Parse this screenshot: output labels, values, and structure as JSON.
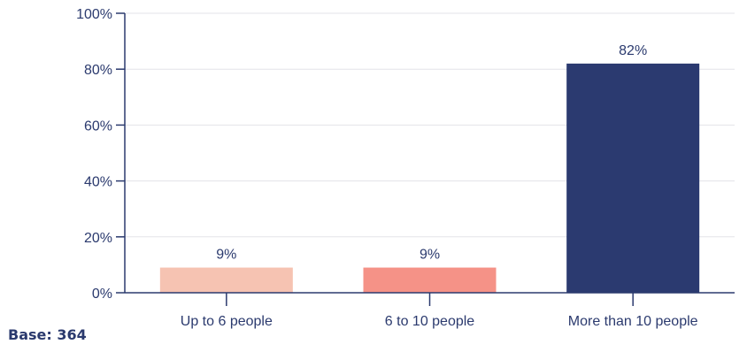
{
  "colors": {
    "axis": "#2b3a6e",
    "grid": "#e3e3e8",
    "text": "#2b3a6e"
  },
  "chart_data": {
    "type": "bar",
    "categories": [
      "Up to 6 people",
      "6 to 10 people",
      "More than 10 people"
    ],
    "values": [
      9,
      9,
      82
    ],
    "data_labels": [
      "9%",
      "9%",
      "82%"
    ],
    "bar_colors": [
      "#f6c3b2",
      "#f59287",
      "#2b3a70"
    ],
    "yticks": [
      0,
      20,
      40,
      60,
      80,
      100
    ],
    "ytick_labels": [
      "0%",
      "20%",
      "40%",
      "60%",
      "80%",
      "100%"
    ],
    "ylim": [
      0,
      100
    ],
    "grid": true,
    "title": "",
    "xlabel": "",
    "ylabel": ""
  },
  "footnote": "Base: 364"
}
